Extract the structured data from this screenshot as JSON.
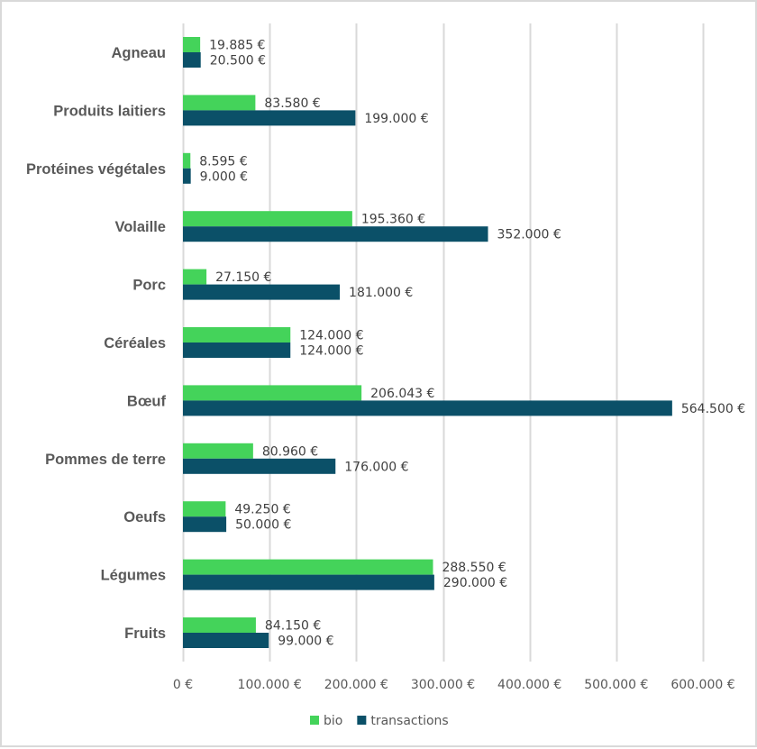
{
  "chart_data": {
    "type": "bar",
    "orientation": "horizontal",
    "title": "",
    "xlabel": "",
    "ylabel": "",
    "categories": [
      "Agneau",
      "Produits laitiers",
      "Protéines végétales",
      "Volaille",
      "Porc",
      "Céréales",
      "Bœuf",
      "Pommes de terre",
      "Oeufs",
      "Légumes",
      "Fruits"
    ],
    "series": [
      {
        "name": "bio",
        "color": "#44d35a",
        "values": [
          19885,
          83580,
          8595,
          195360,
          27150,
          124000,
          206043,
          80960,
          49250,
          288550,
          84150
        ],
        "labels": [
          "19.885 €",
          "83.580 €",
          "8.595 €",
          "195.360 €",
          "27.150 €",
          "124.000 €",
          "206.043 €",
          "80.960 €",
          "49.250 €",
          "288.550 €",
          "84.150 €"
        ]
      },
      {
        "name": "transactions",
        "color": "#0b5068",
        "values": [
          20500,
          199000,
          9000,
          352000,
          181000,
          124000,
          564500,
          176000,
          50000,
          290000,
          99000
        ],
        "labels": [
          "20.500 €",
          "199.000 €",
          "9.000 €",
          "352.000 €",
          "181.000 €",
          "124.000 €",
          "564.500 €",
          "176.000 €",
          "50.000 €",
          "290.000 €",
          "99.000 €"
        ]
      }
    ],
    "xlim": [
      0,
      600000
    ],
    "xticks": [
      0,
      100000,
      200000,
      300000,
      400000,
      500000,
      600000
    ],
    "xtick_labels": [
      "0 €",
      "100.000 €",
      "200.000 €",
      "300.000 €",
      "400.000 €",
      "500.000 €",
      "600.000 €"
    ],
    "grid": "vertical",
    "gridline_color": "#d9d9d9",
    "legend": [
      "bio",
      "transactions"
    ],
    "legend_position": "bottom"
  }
}
